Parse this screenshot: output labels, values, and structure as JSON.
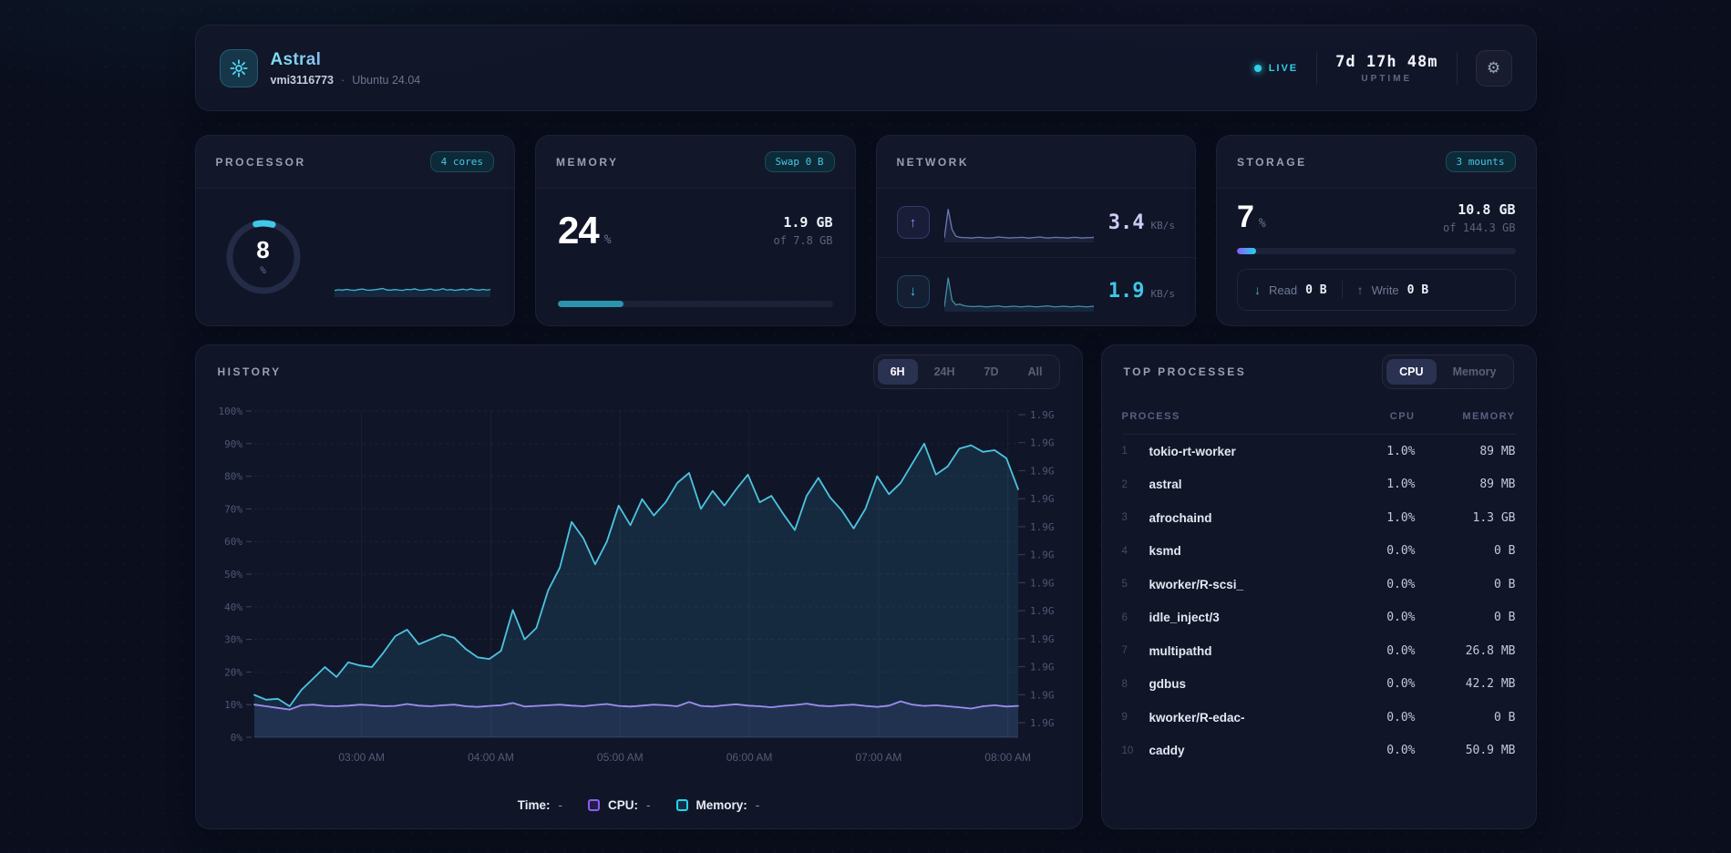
{
  "header": {
    "app": "Astral",
    "hostname": "vmi3116773",
    "separator": "·",
    "os": "Ubuntu 24.04",
    "live": "LIVE",
    "uptime": "7d 17h 48m",
    "uptime_label": "UPTIME"
  },
  "cards": {
    "processor": {
      "title": "PROCESSOR",
      "badge": "4 cores",
      "gauge_value": "8",
      "gauge_unit": "%",
      "gauge_pct": 8,
      "spark": [
        3,
        3.4,
        3.1,
        3.6,
        3.2,
        3,
        3.5,
        3.8,
        3.2,
        3.1,
        3.4,
        3.7,
        4.1,
        3.3,
        3.1,
        3.5,
        3.2,
        3,
        3.6,
        3.4,
        3.9,
        3.2,
        3.1,
        3.5,
        3.8,
        3.1,
        3.3,
        4,
        3.2,
        3.5,
        3,
        3.3,
        3.7,
        3.2,
        3.9,
        3.4,
        3.1,
        3.6,
        3.2,
        3.5
      ]
    },
    "memory": {
      "title": "MEMORY",
      "badge": "Swap 0 B",
      "pct": "24",
      "pct_unit": "%",
      "used": "1.9 GB",
      "total": "of 7.8 GB",
      "bar_pct": 24
    },
    "network": {
      "title": "NETWORK",
      "up": {
        "value": "3.4",
        "unit": "KB/s",
        "spark": [
          5,
          88,
          30,
          10,
          7,
          6,
          6,
          5,
          6,
          7,
          6,
          5,
          5,
          6,
          8,
          7,
          6,
          5,
          6,
          6,
          7,
          6,
          5,
          6,
          7,
          8,
          6,
          5,
          6,
          7,
          6,
          6,
          5,
          6,
          7,
          6,
          5,
          6,
          6,
          7
        ]
      },
      "down": {
        "value": "1.9",
        "unit": "KB/s",
        "spark": [
          6,
          90,
          25,
          12,
          14,
          10,
          8,
          7,
          7,
          8,
          7,
          6,
          7,
          8,
          9,
          7,
          6,
          7,
          8,
          7,
          6,
          7,
          8,
          7,
          6,
          7,
          8,
          9,
          7,
          6,
          7,
          8,
          7,
          6,
          7,
          8,
          7,
          6,
          7,
          8
        ]
      }
    },
    "storage": {
      "title": "STORAGE",
      "badge": "3 mounts",
      "pct": "7",
      "pct_unit": "%",
      "used": "10.8 GB",
      "total": "of 144.3 GB",
      "bar_pct": 7,
      "read_label": "Read",
      "read_value": "0 B",
      "write_label": "Write",
      "write_value": "0 B"
    }
  },
  "history": {
    "title": "HISTORY",
    "ranges": [
      "6H",
      "24H",
      "7D",
      "All"
    ],
    "active_range": "6H",
    "legend": {
      "time_label": "Time:",
      "cpu_label": "CPU:",
      "memory_label": "Memory:",
      "empty": "-"
    }
  },
  "chart_data": {
    "type": "area",
    "title": "System history, 6 hour window",
    "x_start_hours": 2.17,
    "x_end_hours": 8.08,
    "x_tick_hours": [
      3,
      4,
      5,
      6,
      7,
      8
    ],
    "x_tick_labels": [
      "03:00 AM",
      "04:00 AM",
      "05:00 AM",
      "06:00 AM",
      "07:00 AM",
      "08:00 AM"
    ],
    "y_left_ticks": [
      "0%",
      "10%",
      "20%",
      "30%",
      "40%",
      "50%",
      "60%",
      "70%",
      "80%",
      "90%",
      "100%"
    ],
    "y_right_ticks": [
      "1.9G",
      "1.9G",
      "1.9G",
      "1.9G",
      "1.9G",
      "1.9G",
      "1.9G",
      "1.9G",
      "1.9G",
      "1.9G",
      "1.9G",
      "1.9G"
    ],
    "ylim": [
      0,
      100
    ],
    "grid": true,
    "legend_position": "bottom",
    "series": [
      {
        "name": "CPU",
        "unit": "%",
        "values": [
          10,
          9.5,
          9,
          8.5,
          9.8,
          10,
          9.6,
          9.5,
          9.7,
          10,
          9.8,
          9.5,
          9.6,
          10.2,
          9.7,
          9.5,
          9.8,
          10,
          9.5,
          9.3,
          9.6,
          9.8,
          10.5,
          9.4,
          9.6,
          9.8,
          10,
          9.7,
          9.5,
          9.9,
          10.2,
          9.6,
          9.4,
          9.7,
          10,
          9.8,
          9.5,
          10.8,
          9.6,
          9.4,
          9.8,
          10.1,
          9.7,
          9.5,
          9.2,
          9.6,
          9.9,
          10.3,
          9.7,
          9.5,
          9.8,
          10,
          9.6,
          9.3,
          9.7,
          11,
          10,
          9.6,
          9.8,
          9.5,
          9.2,
          8.8,
          9.5,
          9.8,
          9.4,
          9.6
        ]
      },
      {
        "name": "Memory",
        "unit": "%",
        "values": [
          13,
          11.5,
          11.8,
          9.5,
          14.5,
          18,
          21.5,
          18.5,
          23,
          22,
          21.5,
          26,
          31,
          33,
          28.5,
          30,
          31.5,
          30.5,
          27,
          24.5,
          24,
          26.5,
          39,
          30,
          33.5,
          45,
          52,
          66,
          61,
          53,
          60,
          71,
          65,
          73,
          68,
          72,
          78,
          81,
          70,
          75.5,
          71,
          76,
          80.5,
          72,
          74,
          68.5,
          63.5,
          74,
          79.5,
          73.5,
          69.5,
          64,
          70,
          80,
          74.5,
          78,
          84,
          90,
          80.5,
          83,
          88.5,
          89.5,
          87.5,
          88,
          85.5,
          76
        ]
      }
    ]
  },
  "processes": {
    "title": "TOP PROCESSES",
    "toggle": [
      "CPU",
      "Memory"
    ],
    "active_toggle": "CPU",
    "columns": [
      "PROCESS",
      "CPU",
      "MEMORY"
    ],
    "rows": [
      {
        "index": "1",
        "name": "tokio-rt-worker",
        "cpu": "1.0%",
        "mem": "89 MB"
      },
      {
        "index": "2",
        "name": "astral",
        "cpu": "1.0%",
        "mem": "89 MB"
      },
      {
        "index": "3",
        "name": "afrochaind",
        "cpu": "1.0%",
        "mem": "1.3 GB"
      },
      {
        "index": "4",
        "name": "ksmd",
        "cpu": "0.0%",
        "mem": "0 B"
      },
      {
        "index": "5",
        "name": "kworker/R-scsi_",
        "cpu": "0.0%",
        "mem": "0 B"
      },
      {
        "index": "6",
        "name": "idle_inject/3",
        "cpu": "0.0%",
        "mem": "0 B"
      },
      {
        "index": "7",
        "name": "multipathd",
        "cpu": "0.0%",
        "mem": "26.8 MB"
      },
      {
        "index": "8",
        "name": "gdbus",
        "cpu": "0.0%",
        "mem": "42.2 MB"
      },
      {
        "index": "9",
        "name": "kworker/R-edac-",
        "cpu": "0.0%",
        "mem": "0 B"
      },
      {
        "index": "10",
        "name": "caddy",
        "cpu": "0.0%",
        "mem": "50.9 MB"
      }
    ]
  },
  "colors": {
    "mem_line": "#4cc4e0",
    "mem_fill": "rgba(58,172,204,0.14)",
    "cpu_line": "#9c8df0",
    "cpu_fill": "rgba(140,125,240,0.10)",
    "legend_cpu": "#8b5cf6",
    "legend_mem": "#22d3ee",
    "spark_cpu": "#3fb6d4",
    "spark_up": "#6c79b8",
    "spark_down": "#3f8ea8",
    "gauge_arc": "#41c7e8"
  }
}
